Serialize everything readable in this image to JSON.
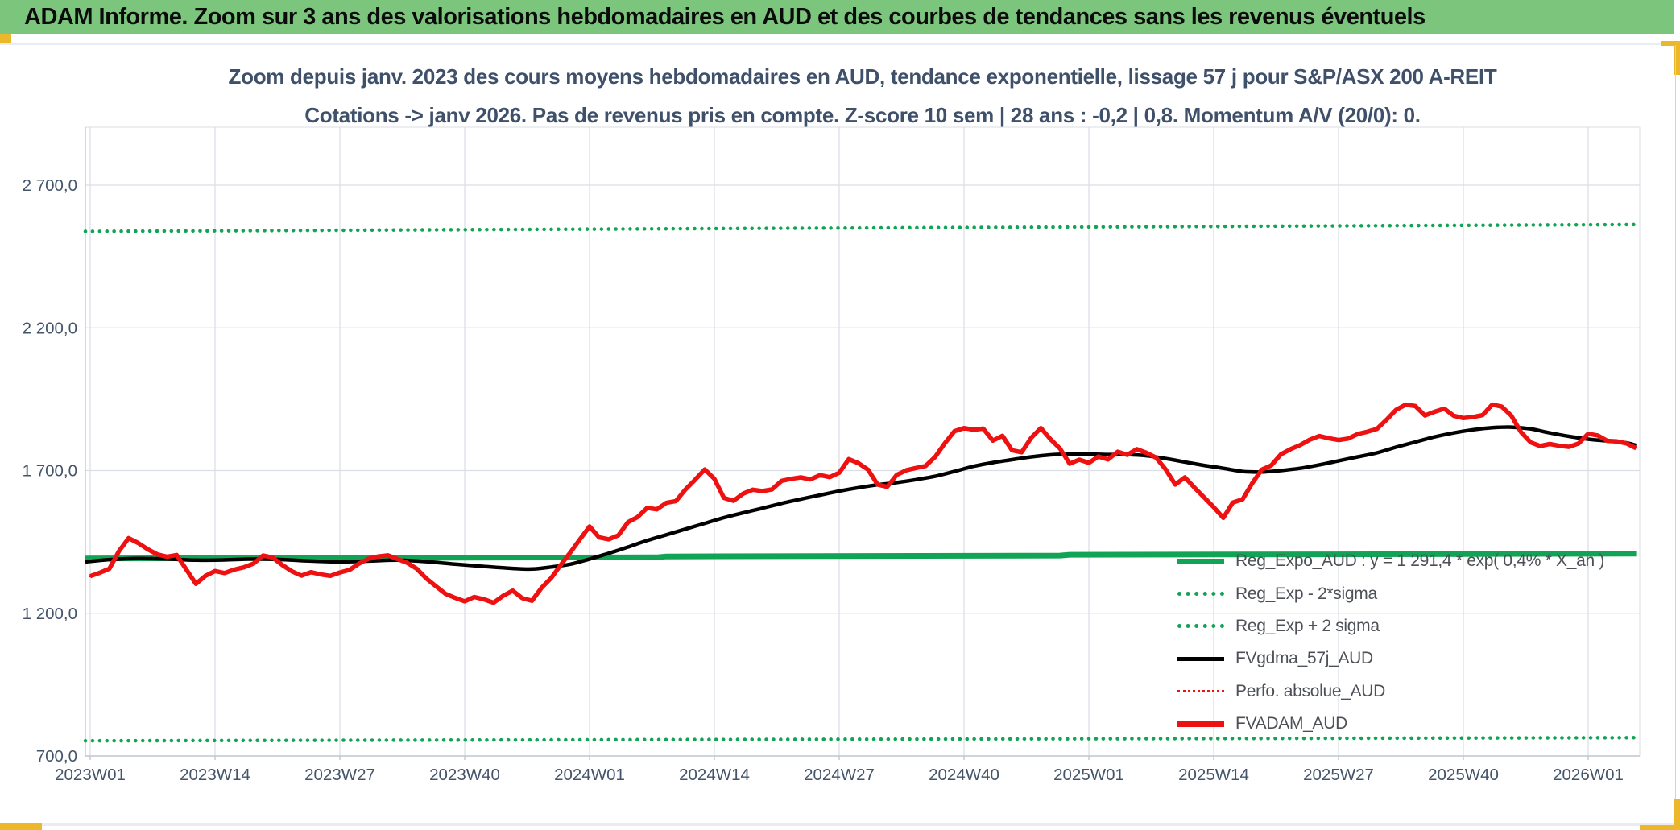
{
  "header": {
    "title": "ADAM Informe. Zoom sur 3 ans des valorisations hebdomadaires en AUD et des courbes de tendances sans les revenus éventuels"
  },
  "chart": {
    "title_line1": "Zoom depuis janv. 2023 des cours moyens hebdomadaires en AUD, tendance exponentielle, lissage 57 j pour S&P/ASX 200 A-REIT",
    "title_line2": "Cotations -> janv 2026. Pas de revenus pris en compte. Z-score 10 sem | 28 ans : -0,2 | 0,8. Momentum A/V (20/0): 0."
  },
  "colors": {
    "header_green": "#7cc57d",
    "series_green": "#12a455",
    "series_red": "#ee1111",
    "series_black": "#000000",
    "axis_text": "#44546a",
    "legend_text": "#4d5157",
    "gridline": "#dadee6",
    "accent_yellow": "#ecb72b"
  },
  "legend": {
    "items": [
      {
        "label": "Reg_Expo_AUD : y = 1 291,4 * exp( 0,4% *  X_an )",
        "color": "#12a455",
        "style": "thick-solid"
      },
      {
        "label": "Reg_Exp - 2*sigma",
        "color": "#12a455",
        "style": "dotted"
      },
      {
        "label": "Reg_Exp + 2 sigma",
        "color": "#12a455",
        "style": "dotted"
      },
      {
        "label": "FVgdma_57j_AUD",
        "color": "#000000",
        "style": "solid"
      },
      {
        "label": "Perfo. absolue_AUD",
        "color": "#ee1111",
        "style": "fine-dotted"
      },
      {
        "label": "FVADAM_AUD",
        "color": "#ee1111",
        "style": "thick-solid"
      }
    ]
  },
  "chart_data": {
    "type": "line",
    "title": "Zoom depuis janv. 2023 des cours moyens hebdomadaires en AUD, tendance exponentielle, lissage 57 j pour S&P/ASX 200 A-REIT",
    "subtitle": "Cotations -> janv 2026. Pas de revenus pris en compte. Z-score 10 sem | 28 ans : -0,2 | 0,8. Momentum A/V (20/0): 0.",
    "grid": true,
    "legend_position": "inside-right",
    "x_axis": {
      "unit": "ISO week",
      "tick_labels": [
        "2023W01",
        "2023W14",
        "2023W27",
        "2023W40",
        "2024W01",
        "2024W14",
        "2024W27",
        "2024W40",
        "2025W01",
        "2025W14",
        "2025W27",
        "2025W40",
        "2026W01"
      ],
      "tick_weeks": [
        1,
        14,
        27,
        40,
        53,
        66,
        79,
        92,
        105,
        118,
        131,
        144,
        157
      ],
      "weeks_total": 162
    },
    "y_axis": {
      "tick_labels": [
        "2 700,0",
        "2 200,0",
        "1 700,0",
        "1 200,0",
        "700,0"
      ],
      "tick_values": [
        2700,
        2200,
        1700,
        1200,
        700
      ],
      "min": 700,
      "max": 2700
    },
    "series": [
      {
        "name": "Reg_Expo_AUD",
        "color": "#12a455",
        "style": "solid",
        "width": 7,
        "points": [
          [
            0.5,
            1392
          ],
          [
            60,
            1396
          ],
          [
            61,
            1399
          ],
          [
            102,
            1402
          ],
          [
            103,
            1405
          ],
          [
            140,
            1407
          ],
          [
            162,
            1409
          ]
        ]
      },
      {
        "name": "Reg_Exp - 2*sigma",
        "color": "#12a455",
        "style": "dotted",
        "width": 4.5,
        "points": [
          [
            0.5,
            753
          ],
          [
            162,
            764
          ]
        ]
      },
      {
        "name": "Reg_Exp + 2 sigma",
        "color": "#12a455",
        "style": "dotted",
        "width": 4.5,
        "points": [
          [
            0.5,
            2538
          ],
          [
            162,
            2562
          ]
        ]
      },
      {
        "name": "FVgdma_57j_AUD",
        "color": "#000000",
        "style": "solid",
        "width": 4.5,
        "smooth": true,
        "points": [
          [
            0.5,
            1380
          ],
          [
            3,
            1388
          ],
          [
            6,
            1392
          ],
          [
            9,
            1390
          ],
          [
            12,
            1386
          ],
          [
            15,
            1387
          ],
          [
            18,
            1390
          ],
          [
            21,
            1388
          ],
          [
            24,
            1383
          ],
          [
            27,
            1380
          ],
          [
            30,
            1383
          ],
          [
            33,
            1386
          ],
          [
            36,
            1381
          ],
          [
            39,
            1372
          ],
          [
            42,
            1364
          ],
          [
            45,
            1357
          ],
          [
            47,
            1355
          ],
          [
            49,
            1362
          ],
          [
            51,
            1372
          ],
          [
            53,
            1390
          ],
          [
            55,
            1410
          ],
          [
            57,
            1432
          ],
          [
            59,
            1455
          ],
          [
            61,
            1475
          ],
          [
            63,
            1495
          ],
          [
            65,
            1515
          ],
          [
            67,
            1535
          ],
          [
            69,
            1552
          ],
          [
            71,
            1568
          ],
          [
            73,
            1585
          ],
          [
            75,
            1600
          ],
          [
            77,
            1614
          ],
          [
            79,
            1628
          ],
          [
            81,
            1640
          ],
          [
            83,
            1650
          ],
          [
            85,
            1658
          ],
          [
            87,
            1668
          ],
          [
            89,
            1680
          ],
          [
            91,
            1697
          ],
          [
            93,
            1715
          ],
          [
            95,
            1728
          ],
          [
            97,
            1738
          ],
          [
            99,
            1748
          ],
          [
            101,
            1755
          ],
          [
            103,
            1758
          ],
          [
            105,
            1758
          ],
          [
            107,
            1756
          ],
          [
            109,
            1756
          ],
          [
            111,
            1752
          ],
          [
            113,
            1742
          ],
          [
            115,
            1730
          ],
          [
            117,
            1718
          ],
          [
            119,
            1708
          ],
          [
            121,
            1697
          ],
          [
            123,
            1695
          ],
          [
            125,
            1700
          ],
          [
            127,
            1708
          ],
          [
            129,
            1720
          ],
          [
            131,
            1734
          ],
          [
            133,
            1748
          ],
          [
            135,
            1762
          ],
          [
            137,
            1782
          ],
          [
            139,
            1800
          ],
          [
            141,
            1818
          ],
          [
            143,
            1832
          ],
          [
            145,
            1843
          ],
          [
            147,
            1850
          ],
          [
            149,
            1852
          ],
          [
            151,
            1846
          ],
          [
            153,
            1832
          ],
          [
            155,
            1820
          ],
          [
            157,
            1810
          ],
          [
            159,
            1804
          ],
          [
            161,
            1797
          ],
          [
            162,
            1788
          ]
        ]
      },
      {
        "name": "Perfo. absolue_AUD",
        "color": "#ee1111",
        "style": "fine-dotted",
        "width": 3,
        "values_ref": "FVADAM_AUD"
      },
      {
        "name": "FVADAM_AUD",
        "color": "#ee1111",
        "style": "solid",
        "width": 5.5,
        "start_week": 1,
        "values": [
          1330,
          1342,
          1356,
          1418,
          1463,
          1446,
          1424,
          1406,
          1398,
          1404,
          1354,
          1303,
          1331,
          1348,
          1341,
          1353,
          1361,
          1374,
          1402,
          1395,
          1369,
          1347,
          1332,
          1344,
          1336,
          1331,
          1343,
          1352,
          1374,
          1391,
          1399,
          1403,
          1390,
          1377,
          1356,
          1322,
          1295,
          1268,
          1254,
          1242,
          1257,
          1249,
          1237,
          1261,
          1279,
          1253,
          1244,
          1289,
          1323,
          1369,
          1413,
          1459,
          1504,
          1466,
          1459,
          1473,
          1519,
          1537,
          1569,
          1564,
          1587,
          1593,
          1634,
          1668,
          1704,
          1671,
          1604,
          1594,
          1619,
          1633,
          1628,
          1634,
          1664,
          1671,
          1676,
          1669,
          1684,
          1677,
          1692,
          1740,
          1726,
          1703,
          1651,
          1643,
          1685,
          1701,
          1709,
          1716,
          1748,
          1796,
          1838,
          1849,
          1843,
          1847,
          1805,
          1822,
          1771,
          1764,
          1815,
          1849,
          1810,
          1777,
          1724,
          1738,
          1727,
          1749,
          1739,
          1766,
          1755,
          1775,
          1762,
          1745,
          1704,
          1651,
          1676,
          1640,
          1606,
          1572,
          1534,
          1588,
          1599,
          1655,
          1703,
          1718,
          1757,
          1775,
          1789,
          1808,
          1821,
          1813,
          1807,
          1812,
          1828,
          1836,
          1846,
          1878,
          1913,
          1931,
          1926,
          1893,
          1906,
          1917,
          1892,
          1884,
          1888,
          1894,
          1931,
          1924,
          1892,
          1835,
          1799,
          1786,
          1793,
          1787,
          1783,
          1795,
          1829,
          1823,
          1804,
          1802,
          1795,
          1778
        ]
      }
    ]
  }
}
